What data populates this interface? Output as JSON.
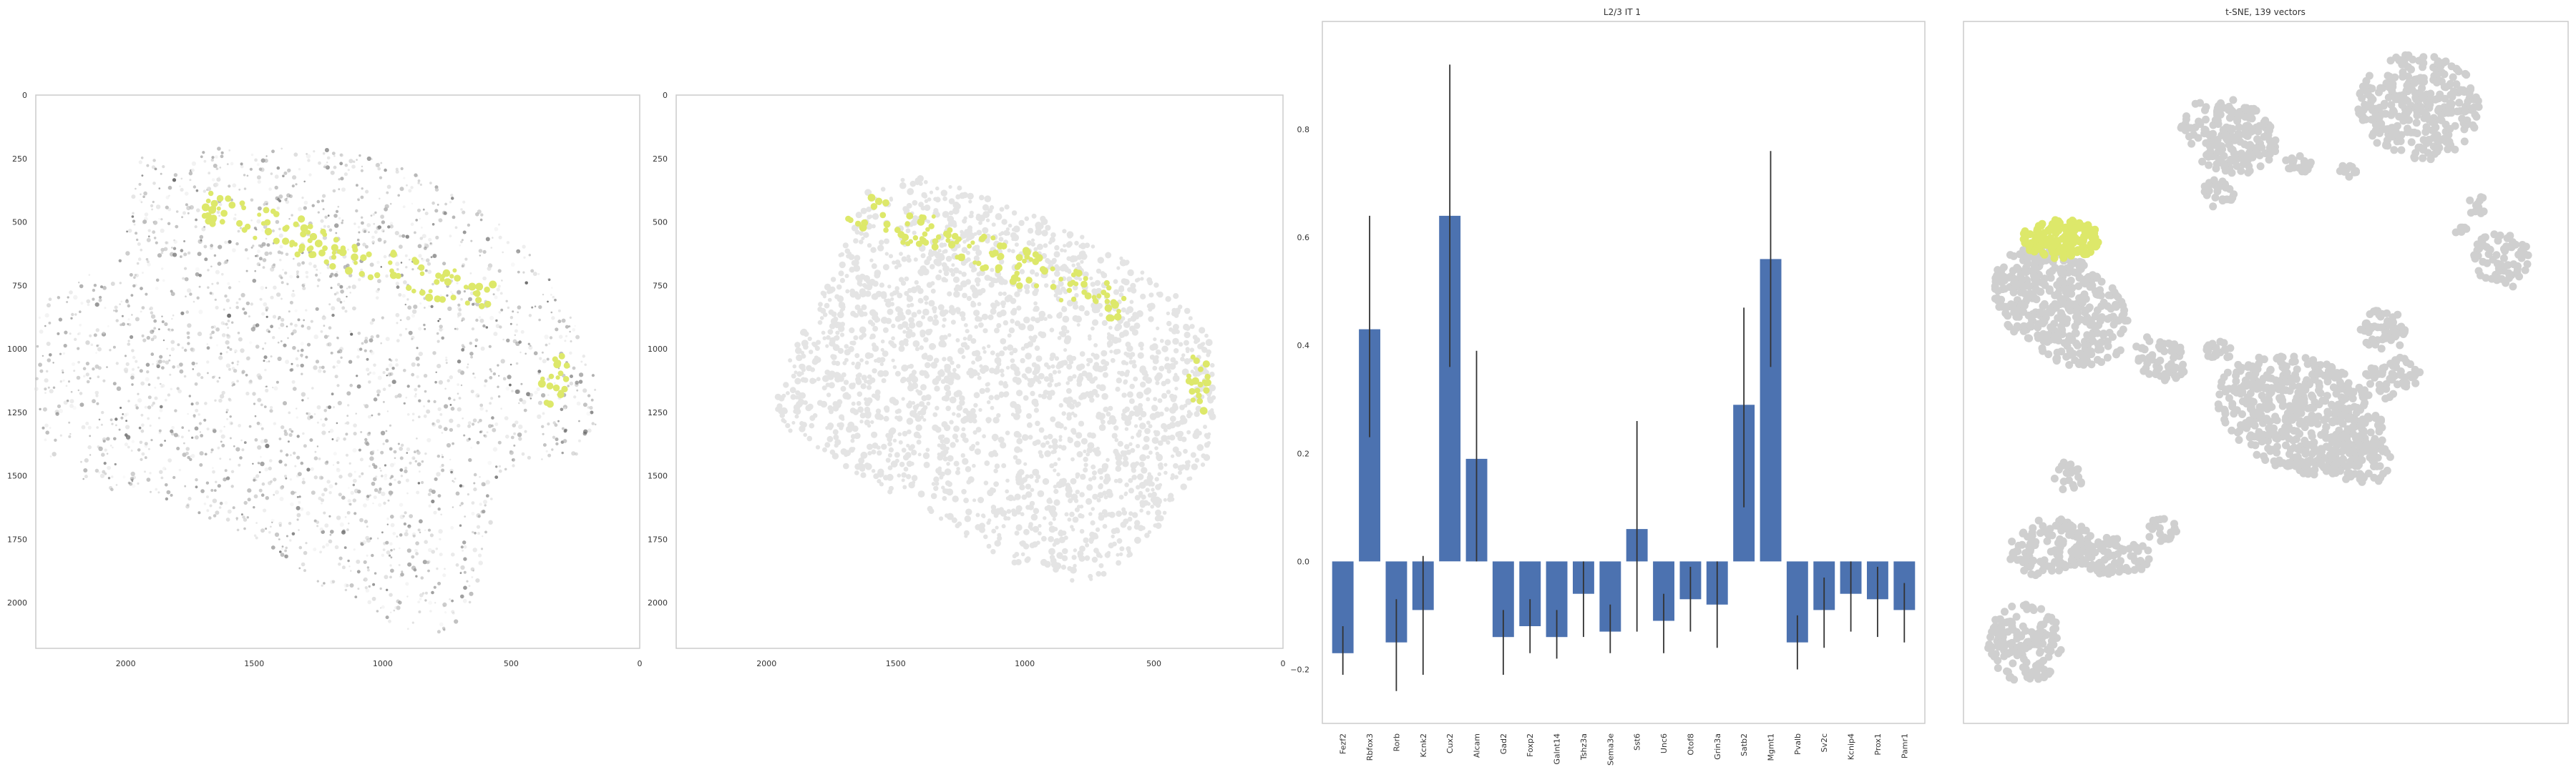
{
  "colors": {
    "highlight": "#dde86a",
    "background_cells": "#cfcfcf",
    "bar": "#4c72b0",
    "frame": "#cccccc"
  },
  "chart_data": [
    {
      "type": "scatter",
      "title": "",
      "panel": "tissue section, raw signal",
      "xlim": [
        2350,
        0
      ],
      "ylim": [
        2180,
        0
      ],
      "x_ticks": [
        "2000",
        "1500",
        "1000",
        "500",
        "0"
      ],
      "y_ticks": [
        "0",
        "250",
        "500",
        "750",
        "1000",
        "1250",
        "1500",
        "1750",
        "2000"
      ]
    },
    {
      "type": "scatter",
      "title": "",
      "panel": "tissue section, segmented cells",
      "xlim": [
        2350,
        0
      ],
      "ylim": [
        2180,
        0
      ],
      "x_ticks": [
        "2000",
        "1500",
        "1000",
        "500",
        "0"
      ],
      "y_ticks": [
        "0",
        "250",
        "500",
        "750",
        "1000",
        "1250",
        "1500",
        "1750",
        "2000"
      ]
    },
    {
      "type": "bar",
      "title": "L2/3 IT 1",
      "xlabel": "",
      "ylabel": "",
      "ylim": [
        -0.3,
        1.0
      ],
      "y_ticks": [
        "−0.2",
        "0.0",
        "0.2",
        "0.4",
        "0.6",
        "0.8"
      ],
      "y_tick_values": [
        -0.2,
        0.0,
        0.2,
        0.4,
        0.6,
        0.8
      ],
      "categories": [
        "Fezf2",
        "Rbfox3",
        "Rorb",
        "Kcnk2",
        "Cux2",
        "Alcam",
        "Gad2",
        "Foxp2",
        "Galnt14",
        "Tshz3a",
        "Sema3e",
        "Sst6",
        "Unc6",
        "Otof8",
        "Grin3a",
        "Satb2",
        "Mgmt1",
        "Pvalb",
        "Sv2c",
        "Kcnip4",
        "Prox1",
        "Pamr1"
      ],
      "values": [
        -0.17,
        0.43,
        -0.15,
        -0.09,
        0.64,
        0.19,
        -0.14,
        -0.12,
        -0.14,
        -0.06,
        -0.13,
        0.06,
        -0.11,
        -0.07,
        -0.08,
        0.29,
        0.56,
        -0.15,
        -0.09,
        -0.06,
        -0.07,
        -0.09
      ],
      "error_low": [
        -0.21,
        0.23,
        -0.24,
        -0.21,
        0.36,
        0.0,
        -0.21,
        -0.17,
        -0.18,
        -0.14,
        -0.17,
        -0.13,
        -0.17,
        -0.13,
        -0.16,
        0.1,
        0.36,
        -0.2,
        -0.16,
        -0.13,
        -0.14,
        -0.15
      ],
      "error_high": [
        -0.12,
        0.64,
        -0.07,
        0.01,
        0.92,
        0.39,
        -0.09,
        -0.07,
        -0.09,
        0.0,
        -0.08,
        0.26,
        -0.06,
        -0.01,
        0.0,
        0.47,
        0.76,
        -0.1,
        -0.03,
        0.0,
        -0.01,
        -0.04
      ]
    },
    {
      "type": "scatter",
      "title": "t-SNE, 139 vectors",
      "xlabel": "",
      "ylabel": "",
      "grid": false,
      "highlighted_count": 139
    }
  ]
}
